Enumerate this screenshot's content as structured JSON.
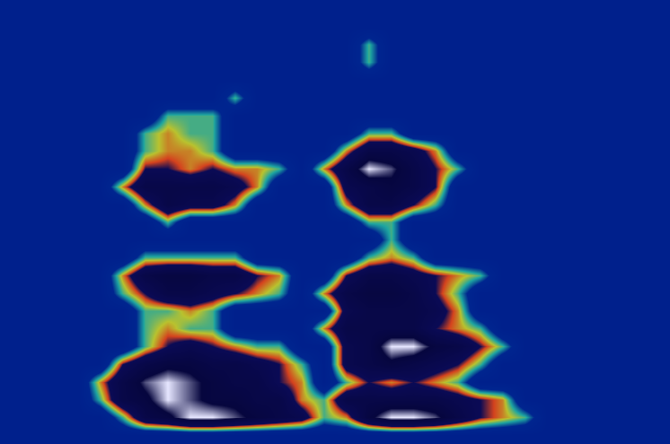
{
  "chart_data": {
    "type": "heatmap",
    "tick_labels": false,
    "grid": false,
    "zlim": [
      0,
      1
    ],
    "cells": [
      [
        0,
        0,
        0,
        0,
        0,
        0,
        0,
        0,
        0,
        0,
        0,
        0,
        0,
        0,
        0,
        0,
        0,
        0,
        0,
        0,
        0,
        0,
        0,
        0,
        0,
        0,
        0,
        0,
        0,
        0
      ],
      [
        0,
        0,
        0,
        0,
        0,
        0.3,
        0.7,
        0.8,
        1,
        1,
        0.9,
        0.8,
        0.7,
        0.6,
        0.3,
        0.4,
        0.8,
        1,
        1,
        0.9,
        0.7,
        0.5,
        0.4,
        0.3,
        0,
        0,
        0,
        0,
        0,
        0
      ],
      [
        0,
        0,
        0,
        0,
        0.3,
        0.7,
        0.8,
        1,
        0.9,
        0.8,
        0.8,
        0.7,
        0.7,
        0.4,
        0.3,
        0.7,
        0.7,
        0.7,
        0.7,
        0.7,
        0.6,
        0.5,
        0.4,
        0,
        0,
        0,
        0,
        0,
        0,
        0
      ],
      [
        0,
        0,
        0,
        0,
        0.4,
        0.7,
        0.9,
        1,
        0.9,
        0.8,
        0.7,
        0.7,
        0.5,
        0.4,
        0,
        0.3,
        0.5,
        0.4,
        0.5,
        0.4,
        0.3,
        0,
        0,
        0,
        0,
        0,
        0,
        0,
        0,
        0
      ],
      [
        0,
        0,
        0,
        0,
        0,
        0.5,
        0.7,
        0.8,
        0.8,
        0.7,
        0.7,
        0.6,
        0.5,
        0.3,
        0,
        0.6,
        0.7,
        0.8,
        0.7,
        0.6,
        0.5,
        0.3,
        0,
        0,
        0,
        0,
        0,
        0,
        0,
        0
      ],
      [
        0,
        0,
        0,
        0,
        0,
        0,
        0.3,
        0.5,
        0.6,
        0.5,
        0.4,
        0.3,
        0.3,
        0,
        0,
        0.6,
        0.7,
        1,
        1,
        0.8,
        0.7,
        0.5,
        0.3,
        0,
        0,
        0,
        0,
        0,
        0,
        0
      ],
      [
        0,
        0,
        0,
        0,
        0,
        0,
        0.3,
        0.4,
        0.3,
        0.3,
        0,
        0,
        0,
        0,
        0.4,
        0.7,
        0.7,
        0.7,
        0.7,
        0.5,
        0.4,
        0.3,
        0,
        0,
        0,
        0,
        0,
        0,
        0,
        0
      ],
      [
        0,
        0,
        0,
        0,
        0,
        0,
        0.3,
        0.3,
        0.4,
        0.3,
        0,
        0,
        0,
        0,
        0,
        0.6,
        0.7,
        0.7,
        0.7,
        0.6,
        0.4,
        0,
        0,
        0,
        0,
        0,
        0,
        0,
        0,
        0
      ],
      [
        0,
        0,
        0,
        0,
        0,
        0.3,
        0.5,
        0.7,
        0.7,
        0.6,
        0.5,
        0.4,
        0.3,
        0,
        0.4,
        0.7,
        0.8,
        0.8,
        0.7,
        0.5,
        0.3,
        0,
        0,
        0,
        0,
        0,
        0,
        0,
        0,
        0
      ],
      [
        0,
        0,
        0,
        0,
        0,
        0.4,
        0.7,
        0.8,
        0.8,
        0.7,
        0.7,
        0.5,
        0.4,
        0,
        0,
        0.5,
        0.7,
        0.7,
        0.6,
        0.5,
        0.4,
        0.3,
        0,
        0,
        0,
        0,
        0,
        0,
        0,
        0
      ],
      [
        0,
        0,
        0,
        0,
        0,
        0,
        0.3,
        0.3,
        0.3,
        0.3,
        0.3,
        0,
        0,
        0,
        0,
        0,
        0.3,
        0.4,
        0.3,
        0,
        0,
        0,
        0,
        0,
        0,
        0,
        0,
        0,
        0,
        0
      ],
      [
        0,
        0,
        0,
        0,
        0,
        0,
        0,
        0,
        0,
        0,
        0,
        0,
        0,
        0,
        0,
        0,
        0,
        0.3,
        0,
        0,
        0,
        0,
        0,
        0,
        0,
        0,
        0,
        0,
        0,
        0
      ],
      [
        0,
        0,
        0,
        0,
        0,
        0,
        0,
        0.3,
        0,
        0,
        0,
        0,
        0,
        0,
        0,
        0,
        0.3,
        0.3,
        0,
        0,
        0,
        0,
        0,
        0,
        0,
        0,
        0,
        0,
        0,
        0
      ],
      [
        0,
        0,
        0,
        0,
        0,
        0,
        0.4,
        0.7,
        0.6,
        0.6,
        0.4,
        0,
        0,
        0,
        0,
        0.4,
        0.7,
        0.7,
        0.5,
        0.3,
        0,
        0,
        0,
        0,
        0,
        0,
        0,
        0,
        0,
        0
      ],
      [
        0,
        0,
        0,
        0,
        0,
        0.4,
        0.7,
        0.7,
        0.7,
        0.7,
        0.6,
        0.4,
        0,
        0,
        0,
        0.6,
        0.7,
        0.8,
        0.7,
        0.5,
        0,
        0,
        0,
        0,
        0,
        0,
        0,
        0,
        0,
        0
      ],
      [
        0,
        0,
        0,
        0,
        0,
        0,
        0.5,
        0.5,
        0.4,
        0.5,
        0.4,
        0.4,
        0.3,
        0,
        0.4,
        0.7,
        1,
        0.9,
        0.7,
        0.5,
        0.3,
        0,
        0,
        0,
        0,
        0,
        0,
        0,
        0,
        0
      ],
      [
        0,
        0,
        0,
        0,
        0,
        0,
        0.3,
        0.4,
        0.4,
        0.3,
        0,
        0,
        0,
        0,
        0,
        0.4,
        0.7,
        0.7,
        0.6,
        0.4,
        0,
        0,
        0,
        0,
        0,
        0,
        0,
        0,
        0,
        0
      ],
      [
        0,
        0,
        0,
        0,
        0,
        0,
        0.3,
        0.4,
        0.3,
        0.3,
        0,
        0,
        0,
        0,
        0,
        0,
        0.3,
        0.3,
        0,
        0,
        0,
        0,
        0,
        0,
        0,
        0,
        0,
        0,
        0,
        0
      ],
      [
        0,
        0,
        0,
        0,
        0,
        0,
        0,
        0.3,
        0.3,
        0.3,
        0,
        0,
        0,
        0,
        0,
        0,
        0,
        0,
        0,
        0,
        0,
        0,
        0,
        0,
        0,
        0,
        0,
        0,
        0,
        0
      ],
      [
        0,
        0,
        0,
        0,
        0,
        0,
        0,
        0,
        0,
        0,
        0.3,
        0,
        0,
        0,
        0,
        0,
        0,
        0,
        0,
        0,
        0,
        0,
        0,
        0,
        0,
        0,
        0,
        0,
        0,
        0
      ],
      [
        0,
        0,
        0,
        0,
        0,
        0,
        0,
        0,
        0,
        0,
        0,
        0,
        0,
        0,
        0,
        0,
        0,
        0,
        0,
        0,
        0,
        0,
        0,
        0,
        0,
        0,
        0,
        0,
        0,
        0
      ],
      [
        0,
        0,
        0,
        0,
        0,
        0,
        0,
        0,
        0,
        0,
        0,
        0,
        0,
        0,
        0,
        0,
        0.3,
        0,
        0,
        0,
        0,
        0,
        0,
        0,
        0,
        0,
        0,
        0,
        0,
        0
      ],
      [
        0,
        0,
        0,
        0,
        0,
        0,
        0,
        0,
        0,
        0,
        0,
        0,
        0,
        0,
        0,
        0,
        0.3,
        0,
        0,
        0,
        0,
        0,
        0,
        0,
        0,
        0,
        0,
        0,
        0,
        0
      ],
      [
        0,
        0,
        0,
        0,
        0,
        0,
        0,
        0,
        0,
        0,
        0,
        0,
        0,
        0,
        0,
        0,
        0,
        0,
        0,
        0,
        0,
        0,
        0,
        0,
        0,
        0,
        0,
        0,
        0,
        0
      ],
      [
        0,
        0,
        0,
        0,
        0,
        0,
        0,
        0,
        0,
        0,
        0,
        0,
        0,
        0,
        0,
        0,
        0,
        0,
        0,
        0,
        0,
        0,
        0,
        0,
        0,
        0,
        0,
        0,
        0,
        0
      ]
    ]
  }
}
